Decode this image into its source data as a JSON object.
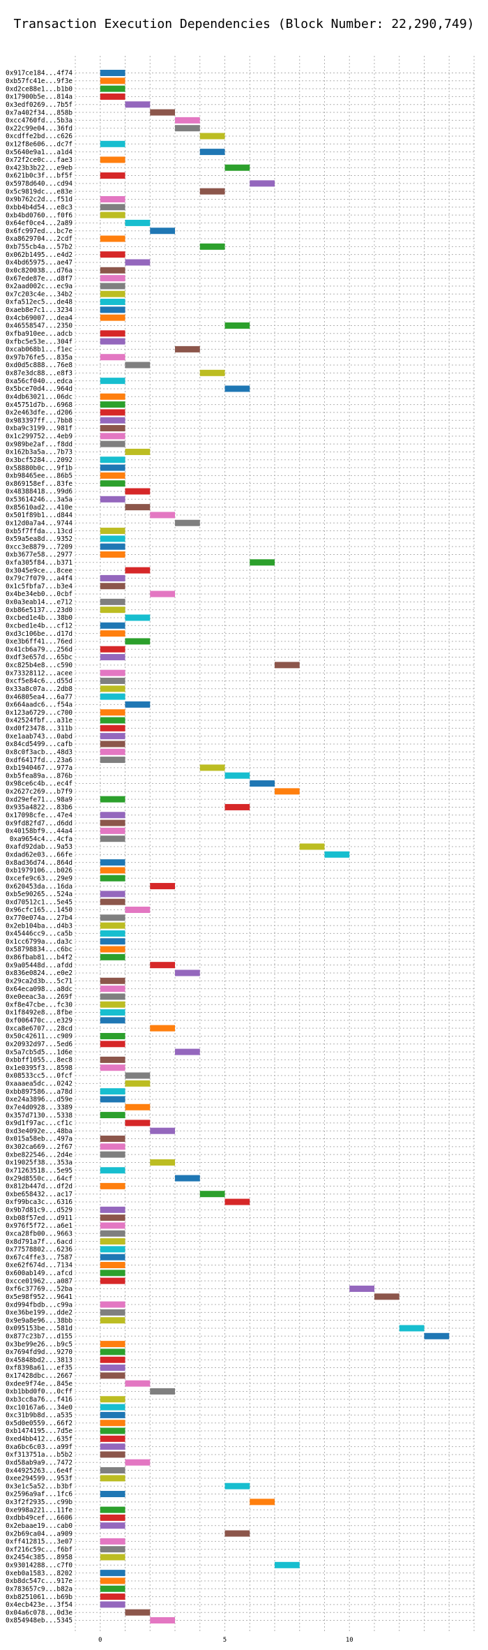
{
  "chart_data": {
    "type": "bar",
    "orientation": "horizontal-gantt",
    "title": "Transaction Execution Dependencies (Block Number: 22,290,749)",
    "xlabel": "",
    "ylabel": "",
    "xlim": [
      -1,
      15
    ],
    "xticks": [
      0,
      5,
      10
    ],
    "grid": true,
    "colors": [
      "#1f77b4",
      "#ff7f0e",
      "#2ca02c",
      "#d62728",
      "#9467bd",
      "#8c564b",
      "#e377c2",
      "#7f7f7f",
      "#bcbd22",
      "#17becf"
    ],
    "rows": [
      {
        "label": "0x917ce184...4f74",
        "start": 0
      },
      {
        "label": "0xb57fc41e...9f3e",
        "start": 0
      },
      {
        "label": "0xd2ce88e1...b1b0",
        "start": 0
      },
      {
        "label": "0x17900b5e...814a",
        "start": 0
      },
      {
        "label": "0x3edf0269...7b5f",
        "start": 1
      },
      {
        "label": "0x7a402f34...858b",
        "start": 2
      },
      {
        "label": "0xcc4760fd...5b3a",
        "start": 3
      },
      {
        "label": "0x22c99e04...36fd",
        "start": 3
      },
      {
        "label": "0xcdffe2bd...c626",
        "start": 4
      },
      {
        "label": "0x12f8e606...dc7f",
        "start": 0
      },
      {
        "label": "0x5640e9a1...a1d4",
        "start": 4
      },
      {
        "label": "0x72f2ce0c...fae3",
        "start": 0
      },
      {
        "label": "0x423b3b22...e9eb",
        "start": 5
      },
      {
        "label": "0x621b0c3f...bf5f",
        "start": 0
      },
      {
        "label": "0x5978d640...cd94",
        "start": 6
      },
      {
        "label": "0x5c9819dc...e83e",
        "start": 4
      },
      {
        "label": "0x9b762c2d...f51d",
        "start": 0
      },
      {
        "label": "0xbb4b4d54...e8c3",
        "start": 0
      },
      {
        "label": "0xb4bd0760...f0f6",
        "start": 0
      },
      {
        "label": "0x64ef0ce4...2a89",
        "start": 1
      },
      {
        "label": "0x6fc997ed...bc7e",
        "start": 2
      },
      {
        "label": "0xa8629704...2cdf",
        "start": 0
      },
      {
        "label": "0xb755cb4a...57b2",
        "start": 4
      },
      {
        "label": "0x062b1495...e4d2",
        "start": 0
      },
      {
        "label": "0x4bd65975...ae47",
        "start": 1
      },
      {
        "label": "0x0c820038...d76a",
        "start": 0
      },
      {
        "label": "0x67ede87e...d8f7",
        "start": 0
      },
      {
        "label": "0x2aad002c...ec9a",
        "start": 0
      },
      {
        "label": "0x7c203c4e...34b2",
        "start": 0
      },
      {
        "label": "0xfa512ec5...de48",
        "start": 0
      },
      {
        "label": "0xaeb8e7c1...3234",
        "start": 0
      },
      {
        "label": "0x4cb69007...dea4",
        "start": 0
      },
      {
        "label": "0x46558547...2350",
        "start": 5
      },
      {
        "label": "0xfba910ee...adcb",
        "start": 0
      },
      {
        "label": "0xfbc5e53e...304f",
        "start": 0
      },
      {
        "label": "0xcab068b1...f1ec",
        "start": 3
      },
      {
        "label": "0x97b76fe5...835a",
        "start": 0
      },
      {
        "label": "0xd0d5c888...76e8",
        "start": 1
      },
      {
        "label": "0x87e3dc88...e8f3",
        "start": 4
      },
      {
        "label": "0xa56cf040...edca",
        "start": 0
      },
      {
        "label": "0x5bce70d4...964d",
        "start": 5
      },
      {
        "label": "0x4db63021...06dc",
        "start": 0
      },
      {
        "label": "0x45751d7b...6968",
        "start": 0
      },
      {
        "label": "0x2e463dfe...d206",
        "start": 0
      },
      {
        "label": "0x983397ff...7bb8",
        "start": 0
      },
      {
        "label": "0xba9c3199...981f",
        "start": 0
      },
      {
        "label": "0x1c299752...4eb9",
        "start": 0
      },
      {
        "label": "0x989be2af...f8dd",
        "start": 0
      },
      {
        "label": "0x162b3a5a...7b73",
        "start": 1
      },
      {
        "label": "0x3bcf5284...2092",
        "start": 0
      },
      {
        "label": "0x58880b0c...9f1b",
        "start": 0
      },
      {
        "label": "0xb98465ee...86b5",
        "start": 0
      },
      {
        "label": "0x869158ef...83fe",
        "start": 0
      },
      {
        "label": "0x48388418...99d6",
        "start": 1
      },
      {
        "label": "0x53614246...3a5a",
        "start": 0
      },
      {
        "label": "0x85610ad2...410e",
        "start": 1
      },
      {
        "label": "0x501f89b1...d844",
        "start": 2
      },
      {
        "label": "0x12d0a7a4...9744",
        "start": 3
      },
      {
        "label": "0xb5f7ffda...13cd",
        "start": 0
      },
      {
        "label": "0x59a5ea8d...9352",
        "start": 0
      },
      {
        "label": "0xcc3e8879...7209",
        "start": 0
      },
      {
        "label": "0xb3677e58...2977",
        "start": 0
      },
      {
        "label": "0xfa305f84...b371",
        "start": 6
      },
      {
        "label": "0x3045e9ce...8cee",
        "start": 1
      },
      {
        "label": "0x79c7f079...a4f4",
        "start": 0
      },
      {
        "label": "0x1c5fbfa7...b3e4",
        "start": 0
      },
      {
        "label": "0x4be34eb0...0cbf",
        "start": 2
      },
      {
        "label": "0x0a3eab14...e712",
        "start": 0
      },
      {
        "label": "0xb86e5137...23d0",
        "start": 0
      },
      {
        "label": "0xcbed1e4b...38b0",
        "start": 1
      },
      {
        "label": "0xcbed1e4b...cf12",
        "start": 0
      },
      {
        "label": "0xd3c106be...d17d",
        "start": 0
      },
      {
        "label": "0xe3b6ff41...76ed",
        "start": 1
      },
      {
        "label": "0x41cb6a79...256d",
        "start": 0
      },
      {
        "label": "0xdf3e657d...65bc",
        "start": 0
      },
      {
        "label": "0xc825b4e8...c590",
        "start": 7
      },
      {
        "label": "0x73328112...acee",
        "start": 0
      },
      {
        "label": "0xcf5e84c6...d55d",
        "start": 0
      },
      {
        "label": "0x33a8c07a...2db8",
        "start": 0
      },
      {
        "label": "0x46805ea4...6a77",
        "start": 0
      },
      {
        "label": "0x664aadc6...f54a",
        "start": 1
      },
      {
        "label": "0x123a6729...c700",
        "start": 0
      },
      {
        "label": "0x42524fbf...a31e",
        "start": 0
      },
      {
        "label": "0xd0f23478...311b",
        "start": 0
      },
      {
        "label": "0xe1aab743...0abd",
        "start": 0
      },
      {
        "label": "0x84cd5499...cafb",
        "start": 0
      },
      {
        "label": "0x8c0f3acb...48d3",
        "start": 0
      },
      {
        "label": "0xdf6417fd...23a6",
        "start": 0
      },
      {
        "label": "0xb1940467...977a",
        "start": 4
      },
      {
        "label": "0xb5fea89a...876b",
        "start": 5
      },
      {
        "label": "0x98ce6c4b...ec4f",
        "start": 6
      },
      {
        "label": "0x2627c269...b7f9",
        "start": 7
      },
      {
        "label": "0xd29efe71...98a9",
        "start": 0
      },
      {
        "label": "0x935a4822...83b6",
        "start": 5
      },
      {
        "label": "0x17098cfe...47e4",
        "start": 0
      },
      {
        "label": "0x9fd82fd7...d6dd",
        "start": 0
      },
      {
        "label": "0x40158bf9...44a4",
        "start": 0
      },
      {
        "label": "0xa9654c4...4cfa",
        "start": 0
      },
      {
        "label": "0xafd92dab...9a53",
        "start": 8
      },
      {
        "label": "0xdad62e03...66fe",
        "start": 9
      },
      {
        "label": "0x8ad36d74...864d",
        "start": 0
      },
      {
        "label": "0xb1979106...b026",
        "start": 0
      },
      {
        "label": "0xcefe9c63...29e9",
        "start": 0
      },
      {
        "label": "0x620453da...16da",
        "start": 2
      },
      {
        "label": "0xb5e90265...524a",
        "start": 0
      },
      {
        "label": "0xd70512c1...5e45",
        "start": 0
      },
      {
        "label": "0x96cfc165...1450",
        "start": 1
      },
      {
        "label": "0x770e074a...27b4",
        "start": 0
      },
      {
        "label": "0x2eb104ba...d4b3",
        "start": 0
      },
      {
        "label": "0x45446cc9...ca5b",
        "start": 0
      },
      {
        "label": "0x1cc6799a...da3c",
        "start": 0
      },
      {
        "label": "0x58798834...c6bc",
        "start": 0
      },
      {
        "label": "0x86fbab81...b4f2",
        "start": 0
      },
      {
        "label": "0x9a05448d...afdd",
        "start": 2
      },
      {
        "label": "0x836e0824...e0e2",
        "start": 3
      },
      {
        "label": "0x29ca2d3b...5c71",
        "start": 0
      },
      {
        "label": "0x64eca098...a8dc",
        "start": 0
      },
      {
        "label": "0xe0eeac3a...269f",
        "start": 0
      },
      {
        "label": "0xf8e47cbe...fc30",
        "start": 0
      },
      {
        "label": "0x1f8492e8...8fbe",
        "start": 0
      },
      {
        "label": "0xf006470c...e329",
        "start": 0
      },
      {
        "label": "0xca8e6707...28cd",
        "start": 2
      },
      {
        "label": "0x50c42611...c909",
        "start": 0
      },
      {
        "label": "0x20932d97...5ed6",
        "start": 0
      },
      {
        "label": "0x5a7cb5d5...1d6e",
        "start": 3
      },
      {
        "label": "0xbbff1055...8ec8",
        "start": 0
      },
      {
        "label": "0x1e0395f3...8598",
        "start": 0
      },
      {
        "label": "0x08533cc5...0fcf",
        "start": 1
      },
      {
        "label": "0xaaaea5dc...0242",
        "start": 1
      },
      {
        "label": "0xbb897586...a78d",
        "start": 0
      },
      {
        "label": "0xe24a3896...d59e",
        "start": 0
      },
      {
        "label": "0x7e4d0928...3389",
        "start": 1
      },
      {
        "label": "0x357d7130...5338",
        "start": 0
      },
      {
        "label": "0x9d1f97ac...cf1c",
        "start": 1
      },
      {
        "label": "0xd3e4092e...48ba",
        "start": 2
      },
      {
        "label": "0x015a58eb...497a",
        "start": 0
      },
      {
        "label": "0x302ca669...2f67",
        "start": 0
      },
      {
        "label": "0xbe822546...2d4e",
        "start": 0
      },
      {
        "label": "0x19025f38...353a",
        "start": 2
      },
      {
        "label": "0x71263518...5e95",
        "start": 0
      },
      {
        "label": "0x29d8550c...64cf",
        "start": 3
      },
      {
        "label": "0x812b447d...df2d",
        "start": 0
      },
      {
        "label": "0xbe658432...ac17",
        "start": 4
      },
      {
        "label": "0xf99bca3c...6316",
        "start": 5
      },
      {
        "label": "0x9b7d81c9...d529",
        "start": 0
      },
      {
        "label": "0xb08f57ed...d911",
        "start": 0
      },
      {
        "label": "0x976f5f72...a6e1",
        "start": 0
      },
      {
        "label": "0xca28fb00...9663",
        "start": 0
      },
      {
        "label": "0x8d791a7f...6acd",
        "start": 0
      },
      {
        "label": "0x77578802...6236",
        "start": 0
      },
      {
        "label": "0x67c4ffe3...7587",
        "start": 0
      },
      {
        "label": "0xe62f674d...7134",
        "start": 0
      },
      {
        "label": "0x600ab149...afcd",
        "start": 0
      },
      {
        "label": "0xcce01962...a087",
        "start": 0
      },
      {
        "label": "0xf6c37769...52ba",
        "start": 10
      },
      {
        "label": "0x5e98f952...9641",
        "start": 11
      },
      {
        "label": "0xd994fbdb...c99a",
        "start": 0
      },
      {
        "label": "0xe36be199...dde2",
        "start": 0
      },
      {
        "label": "0x9e9a8e96...38bb",
        "start": 0
      },
      {
        "label": "0x095153be...581d",
        "start": 12
      },
      {
        "label": "0x877c23b7...d155",
        "start": 13
      },
      {
        "label": "0x3be99e26...b9c5",
        "start": 0
      },
      {
        "label": "0x7694fd9d...9270",
        "start": 0
      },
      {
        "label": "0x45848bd2...3813",
        "start": 0
      },
      {
        "label": "0xf8398a61...ef35",
        "start": 0
      },
      {
        "label": "0x17428dbc...2667",
        "start": 0
      },
      {
        "label": "0xdee9f74e...845e",
        "start": 1
      },
      {
        "label": "0xb1bbd0f0...0cff",
        "start": 2
      },
      {
        "label": "0xb3cc8a76...f416",
        "start": 0
      },
      {
        "label": "0xc10167a6...34e0",
        "start": 0
      },
      {
        "label": "0xc31b9b8d...a535",
        "start": 0
      },
      {
        "label": "0x5d0e0559...66f2",
        "start": 0
      },
      {
        "label": "0xb1474195...7d5e",
        "start": 0
      },
      {
        "label": "0xed4bb412...635f",
        "start": 0
      },
      {
        "label": "0xa6bc6c03...a99f",
        "start": 0
      },
      {
        "label": "0xf313751a...b5b2",
        "start": 0
      },
      {
        "label": "0xd58ab9a9...7472",
        "start": 1
      },
      {
        "label": "0x44925263...6e4f",
        "start": 0
      },
      {
        "label": "0xee294599...953f",
        "start": 0
      },
      {
        "label": "0x3e1c5a52...b3bf",
        "start": 5
      },
      {
        "label": "0x2596a9af...1fc6",
        "start": 0
      },
      {
        "label": "0x3f2f2935...c99b",
        "start": 6
      },
      {
        "label": "0xe998a221...11fe",
        "start": 0
      },
      {
        "label": "0xdbb49cef...6606",
        "start": 0
      },
      {
        "label": "0x2ebaae19...cab0",
        "start": 0
      },
      {
        "label": "0x2b69ca04...a909",
        "start": 5
      },
      {
        "label": "0xff412815...3e07",
        "start": 0
      },
      {
        "label": "0xf216c59c...f6bf",
        "start": 0
      },
      {
        "label": "0x2454c385...8958",
        "start": 0
      },
      {
        "label": "0x93014288...c7f0",
        "start": 7
      },
      {
        "label": "0xeb0a1583...8202",
        "start": 0
      },
      {
        "label": "0xb8dc547c...917e",
        "start": 0
      },
      {
        "label": "0x783657c9...b82a",
        "start": 0
      },
      {
        "label": "0xb8251061...b69b",
        "start": 0
      },
      {
        "label": "0x4ecb423e...3f54",
        "start": 0
      },
      {
        "label": "0x04a6c078...0d3e",
        "start": 1
      },
      {
        "label": "0x854948eb...5345",
        "start": 2
      }
    ]
  }
}
